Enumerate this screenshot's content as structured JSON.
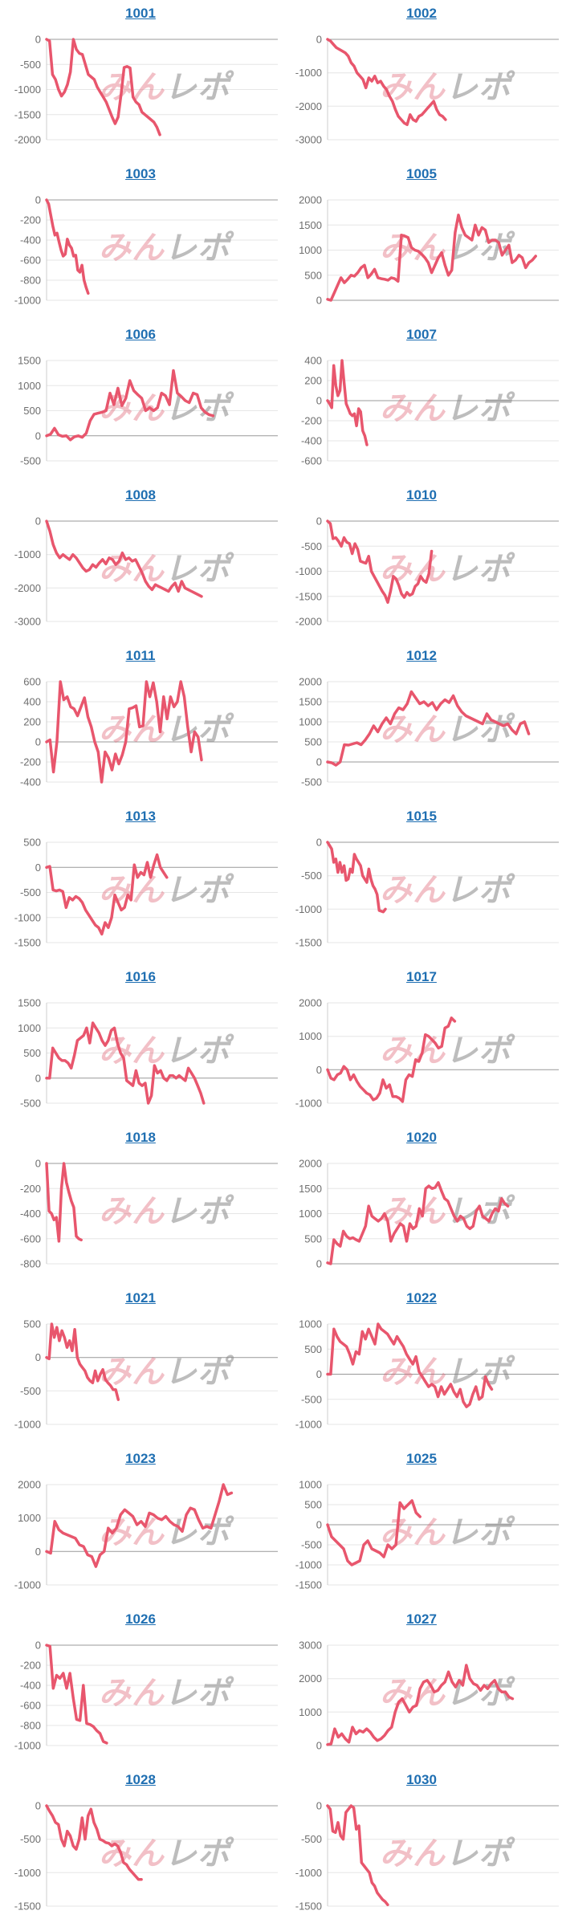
{
  "page": {
    "background": "#ffffff"
  },
  "watermark": {
    "pink": "みん",
    "gray": "レポ"
  },
  "style": {
    "line_color": "#e8566d",
    "title_color": "#1f6fb2",
    "label_color": "#6e6e6e",
    "grid_color": "#e6e6e6",
    "zero_line_color": "#999999",
    "axis_line_color": "#cccccc",
    "watermark_pink": "rgba(222,98,115,0.40)",
    "watermark_gray": "rgba(135,135,135,0.55)"
  },
  "chart_data": [
    {
      "id": "1001",
      "type": "line",
      "yticks": [
        0,
        -500,
        -1000,
        -1500,
        -2000
      ],
      "xspan": 0.49,
      "values": [
        0,
        -30,
        -700,
        -800,
        -1000,
        -1130,
        -1050,
        -900,
        -650,
        0,
        -200,
        -280,
        -300,
        -500,
        -700,
        -750,
        -800,
        -950,
        -1050,
        -1150,
        -1250,
        -1400,
        -1550,
        -1680,
        -1550,
        -1100,
        -560,
        -540,
        -570,
        -1150,
        -1250,
        -1300,
        -1450,
        -1500,
        -1550,
        -1600,
        -1650,
        -1750,
        -1900
      ]
    },
    {
      "id": "1002",
      "type": "line",
      "yticks": [
        0,
        -1000,
        -2000,
        -3000
      ],
      "xspan": 0.51,
      "values": [
        0,
        -50,
        -150,
        -250,
        -300,
        -350,
        -400,
        -500,
        -700,
        -800,
        -1000,
        -1100,
        -1200,
        -1450,
        -1150,
        -1250,
        -1100,
        -1300,
        -1250,
        -1400,
        -1500,
        -1700,
        -1850,
        -2100,
        -2300,
        -2400,
        -2500,
        -2550,
        -2250,
        -2400,
        -2450,
        -2300,
        -2250,
        -2150,
        -2050,
        -1950,
        -1850,
        -2100,
        -2250,
        -2300,
        -2400
      ]
    },
    {
      "id": "1003",
      "type": "line",
      "yticks": [
        0,
        -200,
        -400,
        -600,
        -800,
        -1000
      ],
      "xspan": 0.18,
      "values": [
        0,
        -40,
        -150,
        -260,
        -350,
        -330,
        -420,
        -500,
        -560,
        -540,
        -390,
        -450,
        -480,
        -560,
        -550,
        -700,
        -720,
        -650,
        -800,
        -870,
        -930
      ]
    },
    {
      "id": "1005",
      "type": "line",
      "yticks": [
        2000,
        1500,
        1000,
        500,
        0
      ],
      "xspan": 0.9,
      "values": [
        20,
        0,
        150,
        300,
        450,
        350,
        420,
        500,
        480,
        550,
        650,
        700,
        450,
        520,
        620,
        450,
        430,
        420,
        400,
        450,
        430,
        380,
        1300,
        1280,
        1250,
        1050,
        1000,
        980,
        920,
        850,
        750,
        550,
        700,
        850,
        950,
        700,
        500,
        600,
        1350,
        1700,
        1450,
        1300,
        1250,
        1200,
        1500,
        1300,
        1450,
        1400,
        1150,
        1200,
        1200,
        1150,
        900,
        1000,
        1100,
        750,
        800,
        900,
        850,
        650,
        750,
        800,
        880
      ]
    },
    {
      "id": "1006",
      "type": "line",
      "yticks": [
        1500,
        1000,
        500,
        0,
        -500
      ],
      "xspan": 0.72,
      "values": [
        0,
        30,
        150,
        20,
        -10,
        0,
        -80,
        -20,
        0,
        -30,
        50,
        300,
        430,
        450,
        470,
        500,
        850,
        620,
        950,
        600,
        750,
        1100,
        900,
        820,
        750,
        500,
        560,
        500,
        560,
        850,
        800,
        620,
        1300,
        850,
        780,
        700,
        660,
        850,
        820,
        560,
        470,
        420,
        400
      ]
    },
    {
      "id": "1007",
      "type": "line",
      "yticks": [
        400,
        200,
        0,
        -200,
        -400,
        -600
      ],
      "xspan": 0.17,
      "values": [
        0,
        -30,
        -70,
        350,
        150,
        50,
        100,
        400,
        180,
        -30,
        -80,
        -130,
        -150,
        -130,
        -250,
        -80,
        -110,
        -300,
        -350,
        -440
      ]
    },
    {
      "id": "1008",
      "type": "line",
      "yticks": [
        0,
        -1000,
        -2000,
        -3000
      ],
      "xspan": 0.67,
      "values": [
        0,
        -300,
        -700,
        -950,
        -1100,
        -1000,
        -1080,
        -1150,
        -1000,
        -1100,
        -1250,
        -1400,
        -1500,
        -1450,
        -1300,
        -1380,
        -1250,
        -1150,
        -1280,
        -1100,
        -1150,
        -1300,
        -1200,
        -950,
        -1150,
        -1100,
        -1200,
        -1150,
        -1350,
        -1550,
        -1800,
        -1950,
        -2050,
        -1900,
        -1950,
        -2000,
        -2050,
        -2100,
        -1950,
        -1850,
        -2100,
        -1800,
        -2000,
        -2050,
        -2100,
        -2150,
        -2200,
        -2250
      ]
    },
    {
      "id": "1010",
      "type": "line",
      "yticks": [
        0,
        -500,
        -1000,
        -1500,
        -2000
      ],
      "xspan": 0.45,
      "values": [
        0,
        -50,
        -350,
        -330,
        -400,
        -500,
        -330,
        -420,
        -450,
        -650,
        -450,
        -560,
        -800,
        -820,
        -840,
        -700,
        -1000,
        -1100,
        -1200,
        -1300,
        -1400,
        -1480,
        -1620,
        -1400,
        -1100,
        -1150,
        -1280,
        -1450,
        -1520,
        -1420,
        -1480,
        -1450,
        -1300,
        -1250,
        -1100,
        -1180,
        -1220,
        -1050,
        -600
      ]
    },
    {
      "id": "1011",
      "type": "line",
      "yticks": [
        600,
        400,
        200,
        0,
        -200,
        -400
      ],
      "xspan": 0.67,
      "values": [
        0,
        20,
        -300,
        0,
        600,
        420,
        450,
        350,
        330,
        260,
        350,
        440,
        250,
        150,
        0,
        -100,
        -400,
        -100,
        -160,
        -280,
        -120,
        -220,
        -130,
        0,
        330,
        340,
        360,
        150,
        160,
        600,
        450,
        590,
        400,
        100,
        450,
        230,
        450,
        350,
        400,
        600,
        450,
        150,
        -100,
        100,
        50,
        -180
      ]
    },
    {
      "id": "1012",
      "type": "line",
      "yticks": [
        2000,
        1500,
        1000,
        500,
        0,
        -500
      ],
      "xspan": 0.87,
      "values": [
        0,
        -20,
        -80,
        0,
        430,
        420,
        450,
        480,
        430,
        550,
        700,
        900,
        750,
        950,
        1100,
        950,
        1200,
        1350,
        1300,
        1450,
        1750,
        1600,
        1450,
        1500,
        1400,
        1480,
        1300,
        1450,
        1550,
        1480,
        1650,
        1400,
        1250,
        1150,
        1100,
        1050,
        1000,
        950,
        1200,
        1050,
        1000,
        950,
        900,
        950,
        800,
        700,
        950,
        1000,
        700
      ]
    },
    {
      "id": "1013",
      "type": "line",
      "yticks": [
        500,
        0,
        -500,
        -1000,
        -1500
      ],
      "xspan": 0.52,
      "values": [
        0,
        20,
        -450,
        -470,
        -450,
        -480,
        -800,
        -600,
        -650,
        -580,
        -620,
        -700,
        -850,
        -950,
        -1050,
        -1150,
        -1200,
        -1330,
        -1100,
        -1200,
        -1000,
        -550,
        -700,
        -850,
        -800,
        -550,
        -650,
        50,
        -200,
        -100,
        -150,
        100,
        -200,
        50,
        250,
        0,
        -100,
        -200
      ]
    },
    {
      "id": "1015",
      "type": "line",
      "yticks": [
        0,
        -500,
        -1000,
        -1500
      ],
      "xspan": 0.25,
      "values": [
        0,
        -50,
        -100,
        -300,
        -250,
        -450,
        -300,
        -450,
        -350,
        -570,
        -550,
        -400,
        -450,
        -180,
        -250,
        -300,
        -350,
        -500,
        -550,
        -600,
        -400,
        -550,
        -650,
        -700,
        -780,
        -1020,
        -1030,
        -1040,
        -1000
      ]
    },
    {
      "id": "1016",
      "type": "line",
      "yticks": [
        1500,
        1000,
        500,
        0,
        -500
      ],
      "xspan": 0.68,
      "values": [
        0,
        0,
        600,
        500,
        400,
        350,
        350,
        300,
        200,
        450,
        750,
        800,
        850,
        1000,
        700,
        1100,
        1000,
        900,
        750,
        650,
        750,
        950,
        1000,
        700,
        500,
        400,
        -50,
        -100,
        -150,
        150,
        -100,
        -150,
        -100,
        -500,
        -350,
        250,
        100,
        150,
        0,
        -50,
        50,
        50,
        0,
        50,
        0,
        -50,
        200,
        100,
        0,
        -150,
        -300,
        -500
      ]
    },
    {
      "id": "1017",
      "type": "line",
      "yticks": [
        2000,
        1000,
        0,
        -1000
      ],
      "xspan": 0.55,
      "values": [
        0,
        -250,
        -300,
        -150,
        -100,
        100,
        0,
        -300,
        -150,
        -350,
        -500,
        -600,
        -700,
        -750,
        -900,
        -850,
        -700,
        -300,
        -550,
        -450,
        -800,
        -800,
        -850,
        -950,
        -300,
        -150,
        -200,
        300,
        250,
        500,
        1050,
        1000,
        900,
        800,
        650,
        700,
        1250,
        1300,
        1550,
        1450
      ]
    },
    {
      "id": "1018",
      "type": "line",
      "yticks": [
        0,
        -200,
        -400,
        -600,
        -800
      ],
      "xspan": 0.15,
      "values": [
        0,
        -380,
        -400,
        -450,
        -430,
        -620,
        -200,
        0,
        -150,
        -230,
        -300,
        -350,
        -580,
        -600,
        -610
      ]
    },
    {
      "id": "1020",
      "type": "line",
      "yticks": [
        2000,
        1500,
        1000,
        500,
        0
      ],
      "xspan": 0.78,
      "values": [
        20,
        0,
        480,
        400,
        350,
        650,
        550,
        500,
        520,
        480,
        450,
        600,
        750,
        1150,
        950,
        900,
        850,
        900,
        1000,
        850,
        450,
        600,
        700,
        800,
        750,
        450,
        800,
        700,
        750,
        1100,
        950,
        1500,
        1550,
        1500,
        1520,
        1620,
        1450,
        1300,
        1250,
        1100,
        950,
        850,
        950,
        900,
        750,
        700,
        750,
        1050,
        1150,
        950,
        900,
        850,
        1000,
        1100,
        1050,
        1300,
        1200,
        1150
      ]
    },
    {
      "id": "1021",
      "type": "line",
      "yticks": [
        500,
        0,
        -500,
        -1000
      ],
      "xspan": 0.31,
      "values": [
        0,
        -20,
        500,
        300,
        450,
        250,
        400,
        300,
        150,
        250,
        100,
        420,
        0,
        -100,
        -150,
        -200,
        -300,
        -350,
        -380,
        -200,
        -350,
        -250,
        -180,
        -330,
        -380,
        -420,
        -480,
        -480,
        -630
      ]
    },
    {
      "id": "1022",
      "type": "line",
      "yticks": [
        1000,
        500,
        0,
        -500,
        -1000
      ],
      "xspan": 0.71,
      "values": [
        0,
        0,
        900,
        750,
        650,
        600,
        550,
        400,
        200,
        450,
        400,
        850,
        700,
        900,
        750,
        600,
        1000,
        900,
        850,
        800,
        700,
        600,
        750,
        650,
        550,
        400,
        300,
        200,
        350,
        50,
        -50,
        -150,
        -250,
        -200,
        -250,
        -450,
        -250,
        -400,
        -300,
        -200,
        -350,
        -450,
        -300,
        -550,
        -650,
        -600,
        -400,
        -250,
        -500,
        -450,
        -50,
        -200,
        -300
      ]
    },
    {
      "id": "1023",
      "type": "line",
      "yticks": [
        2000,
        1000,
        0,
        -1000
      ],
      "xspan": 0.8,
      "values": [
        0,
        -50,
        900,
        650,
        550,
        500,
        450,
        400,
        200,
        150,
        -100,
        -150,
        -450,
        -100,
        0,
        700,
        550,
        700,
        1100,
        1250,
        1150,
        1050,
        800,
        900,
        750,
        1150,
        1100,
        1000,
        950,
        1050,
        900,
        800,
        750,
        600,
        1100,
        1300,
        1250,
        950,
        700,
        750,
        700,
        1100,
        1500,
        2000,
        1700,
        1750
      ]
    },
    {
      "id": "1025",
      "type": "line",
      "yticks": [
        1000,
        500,
        0,
        -500,
        -1000,
        -1500
      ],
      "xspan": 0.4,
      "values": [
        0,
        -300,
        -400,
        -500,
        -600,
        -900,
        -1000,
        -950,
        -900,
        -500,
        -400,
        -600,
        -650,
        -700,
        -800,
        -500,
        -600,
        -500,
        550,
        400,
        500,
        600,
        300,
        200
      ]
    },
    {
      "id": "1026",
      "type": "line",
      "yticks": [
        0,
        -200,
        -400,
        -600,
        -800,
        -1000
      ],
      "xspan": 0.26,
      "values": [
        0,
        -10,
        -430,
        -300,
        -330,
        -280,
        -430,
        -280,
        -530,
        -740,
        -750,
        -400,
        -780,
        -790,
        -810,
        -850,
        -880,
        -960,
        -975
      ]
    },
    {
      "id": "1027",
      "type": "line",
      "yticks": [
        3000,
        2000,
        1000,
        0
      ],
      "xspan": 0.8,
      "values": [
        30,
        50,
        500,
        250,
        350,
        200,
        100,
        550,
        350,
        450,
        400,
        500,
        400,
        250,
        150,
        200,
        300,
        450,
        550,
        1000,
        1300,
        1400,
        1200,
        1000,
        1150,
        1200,
        1700,
        1900,
        1950,
        1800,
        1600,
        1650,
        1800,
        1900,
        2200,
        1900,
        1750,
        1950,
        1800,
        2400,
        2000,
        1850,
        1800,
        1650,
        1800,
        1700,
        1850,
        1950,
        1700,
        1600,
        1600,
        1450,
        1400
      ]
    },
    {
      "id": "1028",
      "type": "line",
      "yticks": [
        0,
        -500,
        -1000,
        -1500
      ],
      "xspan": 0.41,
      "values": [
        0,
        -80,
        -150,
        -250,
        -280,
        -500,
        -600,
        -380,
        -450,
        -600,
        -650,
        -500,
        -180,
        -500,
        -150,
        -50,
        -250,
        -350,
        -500,
        -520,
        -550,
        -560,
        -600,
        -570,
        -600,
        -700,
        -850,
        -880,
        -950,
        -1000,
        -1050,
        -1100,
        -1100
      ]
    },
    {
      "id": "1030",
      "type": "line",
      "yticks": [
        0,
        -500,
        -1000,
        -1500
      ],
      "xspan": 0.26,
      "values": [
        0,
        -50,
        -380,
        -400,
        -250,
        -450,
        -500,
        -100,
        -50,
        0,
        -30,
        -350,
        -300,
        -850,
        -900,
        -950,
        -1000,
        -1150,
        -1200,
        -1300,
        -1350,
        -1400,
        -1430,
        -1480
      ]
    }
  ]
}
